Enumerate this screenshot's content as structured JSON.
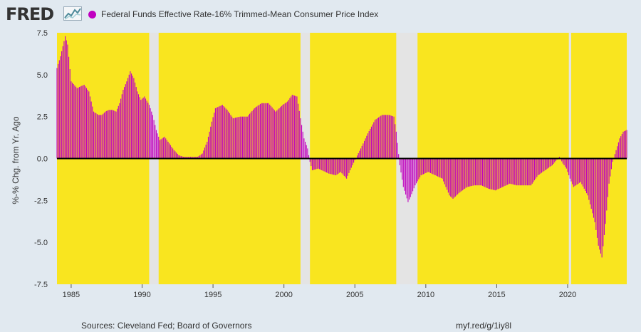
{
  "header": {
    "logo_text": "FRED",
    "logo_icon": "fred-line-graph-icon"
  },
  "chart_data": {
    "type": "bar",
    "legend": "Federal Funds Effective Rate-16% Trimmed-Mean Consumer Price Index",
    "legend_placement": "top-left",
    "series_color": "#c000c0",
    "background_color": "#f9e51f",
    "recession_color": "#e4e4e4",
    "zero_line_color": "#000000",
    "ylabel": "%-% Chg. from Yr. Ago",
    "xlabel": "",
    "ylim": [
      -7.5,
      7.5
    ],
    "y_ticks": [
      "7.5",
      "5.0",
      "2.5",
      "0.0",
      "-2.5",
      "-5.0",
      "-7.5"
    ],
    "xlim": [
      "1984-01",
      "2024-03"
    ],
    "x_ticks": [
      "1985",
      "1990",
      "1995",
      "2000",
      "2005",
      "2010",
      "2015",
      "2020"
    ],
    "grid": false,
    "recessions": [
      [
        "1990-07",
        "1991-03"
      ],
      [
        "2001-03",
        "2001-11"
      ],
      [
        "2007-12",
        "2009-06"
      ],
      [
        "2020-02",
        "2020-04"
      ]
    ],
    "points": [
      [
        "1984-01",
        5.4
      ],
      [
        "1984-04",
        6.1
      ],
      [
        "1984-08",
        7.3
      ],
      [
        "1984-10",
        6.8
      ],
      [
        "1985-01",
        4.6
      ],
      [
        "1985-06",
        4.2
      ],
      [
        "1985-12",
        4.4
      ],
      [
        "1986-04",
        4.0
      ],
      [
        "1986-08",
        2.8
      ],
      [
        "1986-12",
        2.6
      ],
      [
        "1987-03",
        2.6
      ],
      [
        "1987-06",
        2.8
      ],
      [
        "1987-09",
        2.9
      ],
      [
        "1987-12",
        2.9
      ],
      [
        "1988-03",
        2.8
      ],
      [
        "1988-06",
        3.3
      ],
      [
        "1988-09",
        4.1
      ],
      [
        "1988-12",
        4.6
      ],
      [
        "1989-03",
        5.2
      ],
      [
        "1989-06",
        4.8
      ],
      [
        "1989-09",
        4.0
      ],
      [
        "1989-12",
        3.5
      ],
      [
        "1990-03",
        3.7
      ],
      [
        "1990-07",
        3.2
      ],
      [
        "1990-10",
        2.6
      ],
      [
        "1991-01",
        1.7
      ],
      [
        "1991-04",
        1.1
      ],
      [
        "1991-08",
        1.3
      ],
      [
        "1991-12",
        0.9
      ],
      [
        "1992-04",
        0.5
      ],
      [
        "1992-08",
        0.2
      ],
      [
        "1992-12",
        0.1
      ],
      [
        "1993-06",
        0.1
      ],
      [
        "1993-12",
        0.1
      ],
      [
        "1994-04",
        0.3
      ],
      [
        "1994-08",
        1.0
      ],
      [
        "1994-12",
        2.2
      ],
      [
        "1995-03",
        3.0
      ],
      [
        "1995-09",
        3.2
      ],
      [
        "1996-01",
        2.9
      ],
      [
        "1996-06",
        2.4
      ],
      [
        "1996-12",
        2.5
      ],
      [
        "1997-06",
        2.5
      ],
      [
        "1997-12",
        3.0
      ],
      [
        "1998-06",
        3.3
      ],
      [
        "1998-12",
        3.3
      ],
      [
        "1999-06",
        2.8
      ],
      [
        "1999-12",
        3.2
      ],
      [
        "2000-04",
        3.4
      ],
      [
        "2000-08",
        3.8
      ],
      [
        "2000-12",
        3.7
      ],
      [
        "2001-03",
        2.4
      ],
      [
        "2001-06",
        1.2
      ],
      [
        "2001-09",
        0.6
      ],
      [
        "2001-11",
        -0.2
      ],
      [
        "2002-01",
        -0.7
      ],
      [
        "2002-06",
        -0.6
      ],
      [
        "2002-12",
        -0.8
      ],
      [
        "2003-03",
        -0.9
      ],
      [
        "2003-09",
        -1.0
      ],
      [
        "2004-01",
        -0.8
      ],
      [
        "2004-06",
        -1.2
      ],
      [
        "2004-09",
        -0.7
      ],
      [
        "2005-01",
        -0.1
      ],
      [
        "2005-06",
        0.6
      ],
      [
        "2005-12",
        1.5
      ],
      [
        "2006-06",
        2.3
      ],
      [
        "2006-12",
        2.6
      ],
      [
        "2007-06",
        2.6
      ],
      [
        "2007-10",
        2.5
      ],
      [
        "2007-12",
        1.6
      ],
      [
        "2008-03",
        -0.4
      ],
      [
        "2008-06",
        -1.7
      ],
      [
        "2008-10",
        -2.6
      ],
      [
        "2008-12",
        -2.3
      ],
      [
        "2009-04",
        -1.6
      ],
      [
        "2009-09",
        -1.0
      ],
      [
        "2010-03",
        -0.8
      ],
      [
        "2010-09",
        -1.0
      ],
      [
        "2011-03",
        -1.2
      ],
      [
        "2011-09",
        -2.2
      ],
      [
        "2011-12",
        -2.4
      ],
      [
        "2012-06",
        -2.0
      ],
      [
        "2012-12",
        -1.7
      ],
      [
        "2013-06",
        -1.6
      ],
      [
        "2013-12",
        -1.6
      ],
      [
        "2014-06",
        -1.8
      ],
      [
        "2014-12",
        -1.9
      ],
      [
        "2015-06",
        -1.7
      ],
      [
        "2015-12",
        -1.5
      ],
      [
        "2016-06",
        -1.6
      ],
      [
        "2016-12",
        -1.6
      ],
      [
        "2017-06",
        -1.6
      ],
      [
        "2017-12",
        -1.0
      ],
      [
        "2018-06",
        -0.7
      ],
      [
        "2018-12",
        -0.4
      ],
      [
        "2019-06",
        0.1
      ],
      [
        "2019-09",
        -0.3
      ],
      [
        "2019-12",
        -0.6
      ],
      [
        "2020-03",
        -1.2
      ],
      [
        "2020-06",
        -1.7
      ],
      [
        "2020-12",
        -1.4
      ],
      [
        "2021-06",
        -2.2
      ],
      [
        "2021-12",
        -3.8
      ],
      [
        "2022-03",
        -5.2
      ],
      [
        "2022-06",
        -5.9
      ],
      [
        "2022-09",
        -3.9
      ],
      [
        "2022-12",
        -1.5
      ],
      [
        "2023-03",
        -0.2
      ],
      [
        "2023-06",
        0.5
      ],
      [
        "2023-09",
        1.2
      ],
      [
        "2023-12",
        1.6
      ],
      [
        "2024-03",
        1.7
      ]
    ]
  },
  "footer": {
    "source": "Sources: Cleveland Fed; Board of Governors",
    "link": "myf.red/g/1iy8l"
  }
}
